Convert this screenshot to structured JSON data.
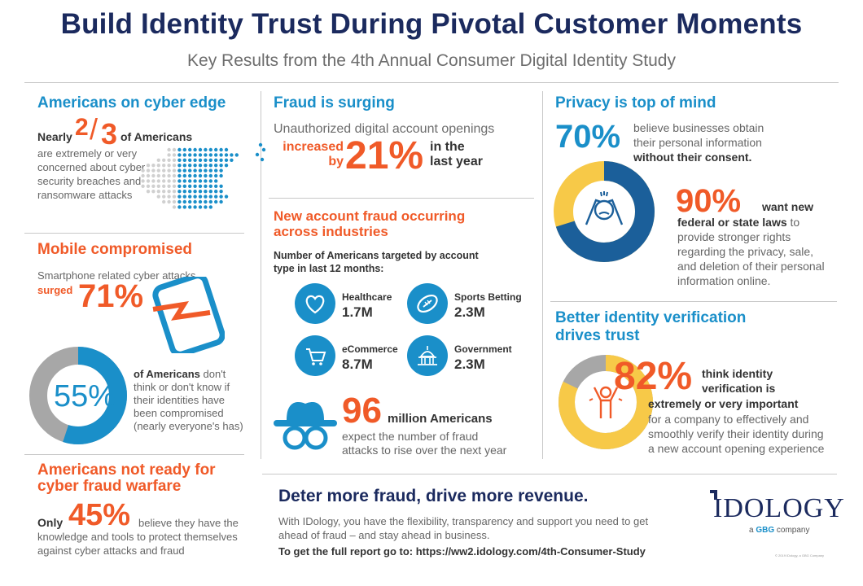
{
  "header": {
    "title": "Build Identity Trust During Pivotal Customer Moments",
    "subtitle": "Key Results from the 4th Annual Consumer Digital Identity Study"
  },
  "cyber_edge": {
    "title": "Americans on cyber edge",
    "prefix": "Nearly",
    "fraction_num": "2",
    "fraction_den": "3",
    "suffix": "of Americans",
    "line1": "are extremely or very",
    "line2": "concerned about cyber",
    "line3": "security breaches and",
    "line4": "ransomware attacks"
  },
  "mobile": {
    "title": "Mobile compromised",
    "line1": "Smartphone related cyber attacks",
    "surged": "surged",
    "pct": "71%",
    "donut_pct": "55%",
    "donut_value": 0.55,
    "desc_bold": "of Americans",
    "desc1": " don't",
    "desc2": "think or don't know if",
    "desc3": "their identities have",
    "desc4": "been compromised",
    "desc5": "(nearly everyone's has)"
  },
  "not_ready": {
    "title1": "Americans not ready for",
    "title2": "cyber fraud warfare",
    "only": "Only",
    "pct": "45%",
    "line1": "believe they have the",
    "line2": "knowledge and tools to protect themselves",
    "line3": "against cyber attacks and fraud"
  },
  "fraud": {
    "title": "Fraud is surging",
    "line1": "Unauthorized digital account openings",
    "increased": "increased",
    "by": "by",
    "pct": "21%",
    "in_the": "in the",
    "last_year": "last year"
  },
  "new_account": {
    "title1": "New account fraud occurring",
    "title2": "across industries",
    "desc1": "Number of Americans targeted by account",
    "desc2": "type in last 12 months:",
    "industries": [
      {
        "label": "Healthcare",
        "value": "1.7M",
        "icon": "heart-icon"
      },
      {
        "label": "Sports Betting",
        "value": "2.3M",
        "icon": "football-icon"
      },
      {
        "label": "eCommerce",
        "value": "8.7M",
        "icon": "cart-icon"
      },
      {
        "label": "Government",
        "value": "2.3M",
        "icon": "capitol-icon"
      }
    ],
    "big": "96",
    "big_suffix": "million Americans",
    "line1": "expect the number of fraud",
    "line2": "attacks to rise over the next year"
  },
  "privacy": {
    "title": "Privacy is top of mind",
    "pct": "70%",
    "line1": "believe businesses obtain",
    "line2": "their personal information",
    "line3": "without their consent.",
    "donut_value": 0.7,
    "pct2": "90%",
    "want_new": "want new",
    "line4": "federal or state laws",
    "line4b": " to",
    "line5": "provide stronger rights",
    "line6": "regarding the privacy, sale,",
    "line7": "and deletion of their personal",
    "line8": "information online."
  },
  "verification": {
    "title1": "Better identity verification",
    "title2": "drives trust",
    "pct": "82%",
    "donut_value": 0.82,
    "line1": "think identity",
    "line2": "verification is",
    "line3": "extremely or very important",
    "line4": "for a company to effectively and",
    "line5": "smoothly verify their identity during",
    "line6": "a new account opening experience"
  },
  "footer": {
    "headline": "Deter more fraud, drive more revenue.",
    "line1": "With IDology, you have the flexibility, transparency and support you need to get",
    "line2": "ahead of fraud – and stay ahead in business.",
    "cta": "To get the full report go to: https://ww2.idology.com/4th-Consumer-Study",
    "logo_main": "IDOLOGY",
    "logo_sub_a": "a ",
    "logo_sub_b": "GBG",
    "logo_sub_c": " company",
    "copyright": "© 2019 IDology, a GBG Company"
  },
  "colors": {
    "navy": "#1b2a5e",
    "blue": "#1a8fc9",
    "orange": "#f05a28",
    "yellow": "#f7c948",
    "gray": "#a7a7a7"
  }
}
